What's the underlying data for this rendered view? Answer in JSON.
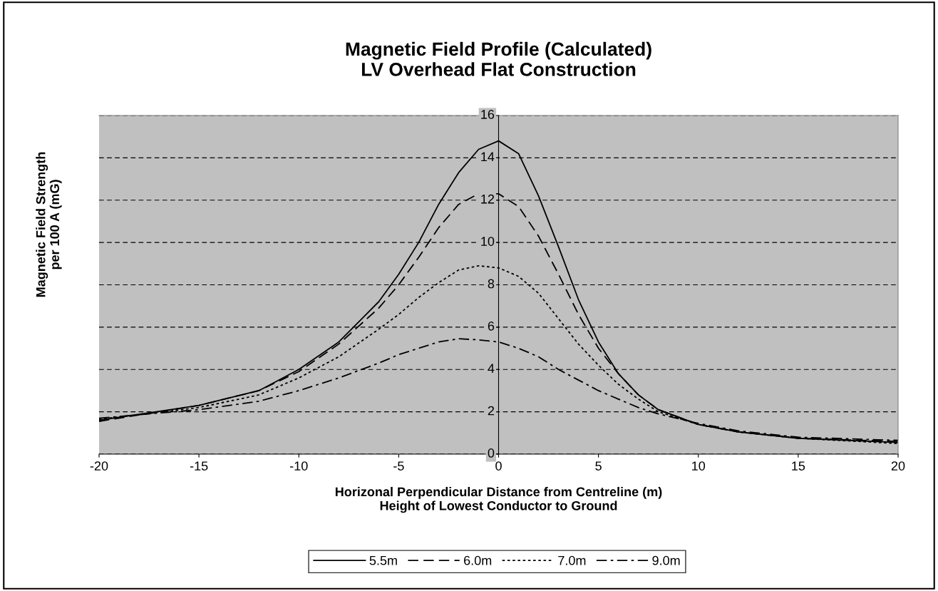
{
  "chart_data": {
    "type": "line",
    "title": "Magnetic Field Profile (Calculated)\nLV Overhead Flat Construction",
    "xlabel": "Horizonal Perpendicular Distance from Centreline (m)\nHeight of Lowest Conductor to Ground",
    "ylabel": "Magnetic Field Strength\nper 100 A (mG)",
    "x": [
      -20,
      -15,
      -12,
      -10,
      -8,
      -6,
      -5,
      -4,
      -3,
      -2,
      -1,
      0,
      1,
      2,
      3,
      4,
      5,
      6,
      7,
      8,
      10,
      12,
      15,
      20
    ],
    "series": [
      {
        "name": "5.5m",
        "color": "#000000",
        "line_style": "solid",
        "values": [
          1.6,
          2.3,
          3.0,
          4.0,
          5.3,
          7.2,
          8.5,
          10.0,
          11.8,
          13.3,
          14.4,
          14.8,
          14.2,
          12.2,
          9.8,
          7.3,
          5.3,
          3.8,
          2.8,
          2.1,
          1.4,
          1.05,
          0.75,
          0.55
        ]
      },
      {
        "name": "6.0m",
        "color": "#000000",
        "line_style": "dashed",
        "values": [
          1.55,
          2.3,
          3.0,
          3.9,
          5.2,
          6.9,
          8.0,
          9.3,
          10.7,
          11.8,
          12.3,
          12.3,
          11.7,
          10.3,
          8.5,
          6.6,
          5.0,
          3.8,
          2.8,
          2.1,
          1.4,
          1.05,
          0.75,
          0.6
        ]
      },
      {
        "name": "7.0m",
        "color": "#000000",
        "line_style": "dotted",
        "values": [
          1.65,
          2.2,
          2.8,
          3.6,
          4.6,
          5.9,
          6.6,
          7.4,
          8.1,
          8.7,
          8.9,
          8.8,
          8.4,
          7.6,
          6.4,
          5.2,
          4.2,
          3.3,
          2.6,
          2.0,
          1.4,
          1.05,
          0.75,
          0.5
        ]
      },
      {
        "name": "9.0m",
        "color": "#000000",
        "line_style": "dashdot",
        "values": [
          1.7,
          2.1,
          2.5,
          3.0,
          3.6,
          4.3,
          4.7,
          5.0,
          5.3,
          5.45,
          5.4,
          5.3,
          5.0,
          4.6,
          4.0,
          3.5,
          3.0,
          2.6,
          2.2,
          1.9,
          1.45,
          1.1,
          0.8,
          0.65
        ]
      }
    ],
    "xlim": [
      -20,
      20
    ],
    "xticks": [
      -20,
      -15,
      -10,
      -5,
      0,
      5,
      10,
      15,
      20
    ],
    "ylim": [
      0,
      16
    ],
    "yticks": [
      0,
      2,
      4,
      6,
      8,
      10,
      12,
      14,
      16
    ],
    "grid": "y",
    "legend": "bottom",
    "marker": "none"
  }
}
